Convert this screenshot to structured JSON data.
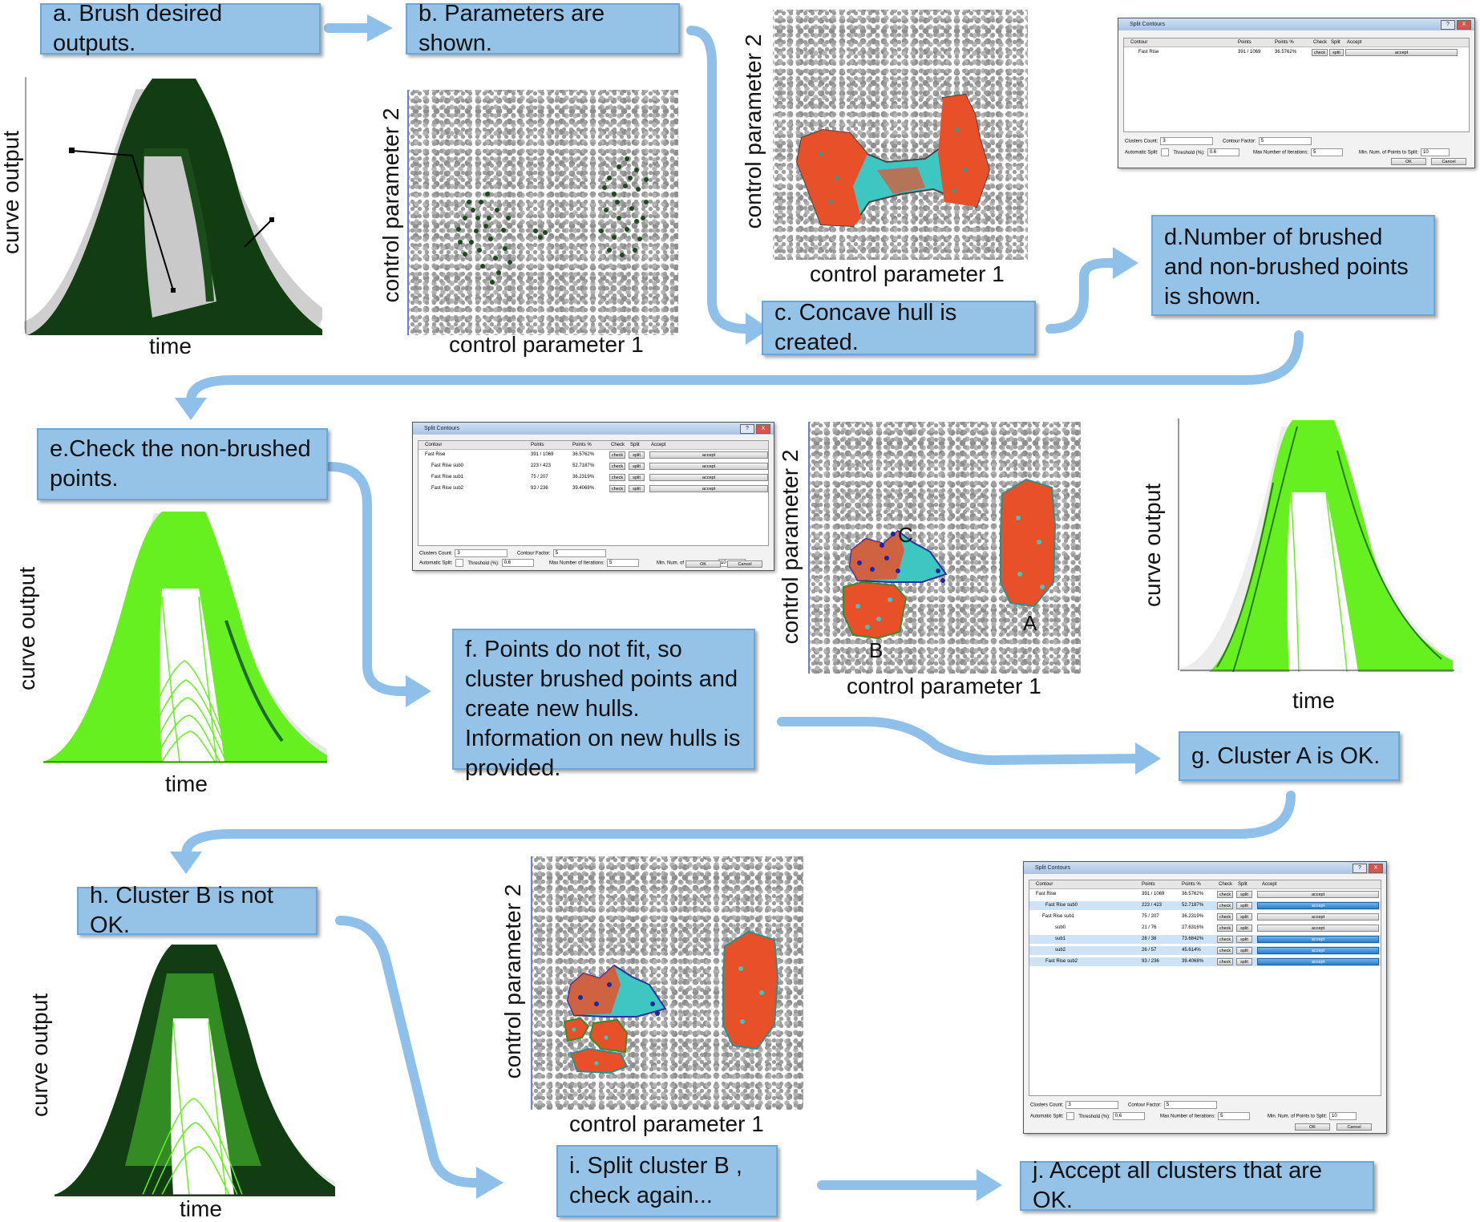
{
  "steps": {
    "a": "a. Brush desired outputs.",
    "b": "b. Parameters are shown.",
    "c": "c. Concave hull is created.",
    "d": "d.Number of brushed and non-brushed points is shown.",
    "e": "e.Check the non-brushed points.",
    "f": "f. Points do not fit, so cluster brushed points and create new hulls. Information on new hulls is provided.",
    "g": "g. Cluster A  is OK.",
    "h": "h.  Cluster B  is not OK.",
    "i": "i. Split cluster B , check again...",
    "j": "j. Accept all clusters that are OK."
  },
  "axes": {
    "curve_output": "curve output",
    "time": "time",
    "param1": "control parameter 1",
    "param2": "control parameter 2"
  },
  "cluster_labels": {
    "a": "A",
    "b": "B",
    "c": "C"
  },
  "colors": {
    "box": "#95c3e8",
    "arrow": "#8ec0ea",
    "dark_green": "#123d12",
    "light_green": "#66f020",
    "hull_red": "#e8502a",
    "hull_cyan": "#3ec6c3"
  },
  "dialog": {
    "title": "Split Contours",
    "help": "?",
    "close": "X",
    "columns": [
      "Contour",
      "Points",
      "Points %",
      "Check",
      "Split",
      "Accept"
    ],
    "check_label": "check",
    "split_label": "split",
    "accept_label": "accept",
    "clusters_count_label": "Clusters Count:",
    "clusters_count": "3",
    "contour_factor_label": "Contour Factor:",
    "contour_factor": "5",
    "auto_split_label": "Automatic Split:",
    "threshold_label": "Threshold (%):",
    "threshold": "0.6",
    "max_iter_label": "Max Number of Iterations:",
    "max_iter": "5",
    "min_points_label": "Min. Num. of Points to Split:",
    "min_points": "10",
    "ok": "OK",
    "cancel": "Cancel",
    "d_rows": [
      {
        "name": "Fast Rise",
        "points": "391 / 1069",
        "pct": "36.5762%"
      }
    ],
    "f_rows": [
      {
        "name": "Fast Rise",
        "points": "391 / 1069",
        "pct": "36.5762%"
      },
      {
        "name": "Fast Rise sub0",
        "points": "223 / 423",
        "pct": "52.7187%"
      },
      {
        "name": "Fast Rise sub1",
        "points": "75 / 207",
        "pct": "36.2319%"
      },
      {
        "name": "Fast Rise sub2",
        "points": "93 / 236",
        "pct": "39.4068%"
      }
    ],
    "j_rows": [
      {
        "name": "Fast Rise",
        "points": "391 / 1069",
        "pct": "36.5762%"
      },
      {
        "name": "Fast Rise sub0",
        "points": "223 / 423",
        "pct": "52.7187%"
      },
      {
        "name": "Fast Rise sub1",
        "points": "75 / 207",
        "pct": "36.2319%"
      },
      {
        "name": "sub0",
        "points": "21 / 76",
        "pct": "27.6316%"
      },
      {
        "name": "sub1",
        "points": "28 / 38",
        "pct": "73.6842%"
      },
      {
        "name": "sub2",
        "points": "26 / 57",
        "pct": "45.614%"
      },
      {
        "name": "Fast Rise sub2",
        "points": "93 / 236",
        "pct": "39.4068%"
      }
    ]
  }
}
